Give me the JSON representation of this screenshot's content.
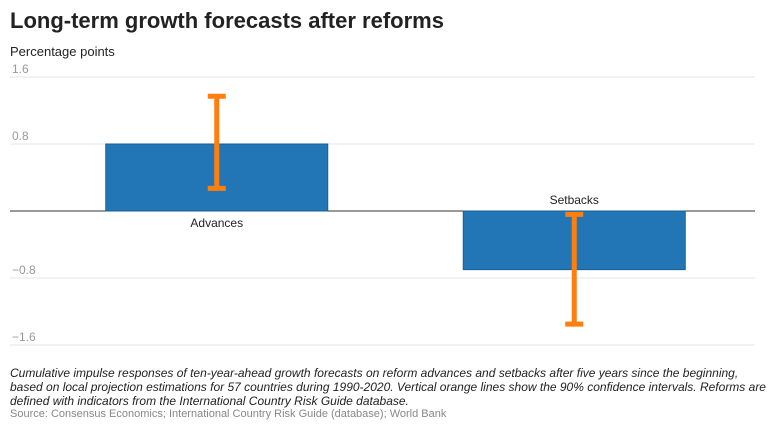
{
  "chart_data": {
    "type": "bar",
    "title": "Long-term growth forecasts after reforms",
    "ylabel": "Percentage points",
    "xlabel": "",
    "categories": [
      "Advances",
      "Setbacks"
    ],
    "values": [
      0.8,
      -0.7
    ],
    "error_bars": [
      {
        "category": "Advances",
        "low": 0.27,
        "high": 1.37
      },
      {
        "category": "Setbacks",
        "low": -1.35,
        "high": -0.04
      }
    ],
    "yticks": [
      1.6,
      0.8,
      -0.8,
      -1.6
    ],
    "ytick_labels": [
      "1.6",
      "0.8",
      "−0.8",
      "−1.6"
    ],
    "ylim": [
      -1.6,
      1.6
    ],
    "grid": true,
    "colors": {
      "bar": "#2276b5",
      "bar_border": "#1a5f92",
      "error": "#ff7f0e",
      "grid": "#e6e6e6",
      "axis": "#333333"
    }
  },
  "caption": "Cumulative impulse responses of ten-year-ahead growth forecasts on reform advances and setbacks after five years since the beginning, based on local projection estimations for 57 countries during 1990-2020. Vertical orange lines show the 90% confidence intervals. Reforms are defined with indicators from the International Country Risk Guide database.",
  "source": "Source: Consensus Economics; International Country Risk Guide (database); World Bank"
}
